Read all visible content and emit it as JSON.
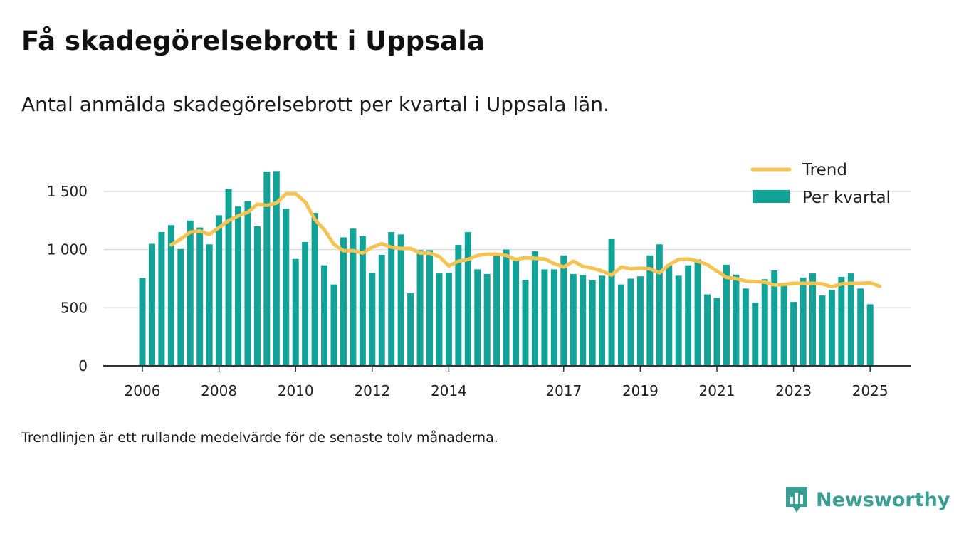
{
  "title": "Få skadegörelsebrott i Uppsala",
  "subtitle": "Antal anmälda skadegörelsebrott per kvartal i Uppsala län.",
  "footnote": "Trendlinjen är ett rullande medelvärde för de senaste tolv månaderna.",
  "brand": {
    "name": "Newsworthy",
    "icon": "newsworthy-logo-icon"
  },
  "colors": {
    "bar": "#12a398",
    "trend": "#f5c352",
    "grid": "#dcdcdc",
    "axis": "#333333",
    "brand": "#3a9e95"
  },
  "chart_data": {
    "type": "bar",
    "x_start": "2006Q1",
    "x_end": "2025Q1",
    "bar_period": "quarter",
    "xticks": [
      "2006",
      "2008",
      "2010",
      "2012",
      "2014",
      "2017",
      "2019",
      "2021",
      "2023",
      "2025"
    ],
    "yticks": [
      0,
      500,
      1000,
      1500
    ],
    "ytick_labels": [
      "0",
      "500",
      "1 000",
      "1 500"
    ],
    "ylim": [
      0,
      1750
    ],
    "grid": true,
    "legend": {
      "position": "top-right",
      "entries": [
        "Trend",
        "Per kvartal"
      ]
    },
    "series": [
      {
        "name": "Per kvartal",
        "type": "bar",
        "values": [
          755,
          1050,
          1150,
          1210,
          1005,
          1250,
          1190,
          1045,
          1295,
          1520,
          1370,
          1415,
          1200,
          1670,
          1675,
          1350,
          920,
          1065,
          1315,
          865,
          700,
          1105,
          1180,
          1115,
          800,
          955,
          1150,
          1130,
          625,
          995,
          995,
          795,
          800,
          1040,
          1150,
          830,
          790,
          965,
          1000,
          905,
          740,
          985,
          830,
          830,
          950,
          790,
          780,
          735,
          775,
          1090,
          700,
          750,
          770,
          950,
          1045,
          865,
          775,
          865,
          915,
          615,
          585,
          870,
          785,
          665,
          545,
          745,
          820,
          695,
          550,
          760,
          795,
          605,
          655,
          765,
          795,
          665,
          530
        ]
      },
      {
        "name": "Trend",
        "type": "line",
        "values": [
          null,
          null,
          null,
          1040,
          1090,
          1150,
          1160,
          1130,
          1190,
          1250,
          1290,
          1320,
          1390,
          1380,
          1400,
          1480,
          1480,
          1410,
          1260,
          1170,
          1045,
          990,
          990,
          970,
          1020,
          1050,
          1020,
          1010,
          1010,
          970,
          970,
          940,
          860,
          900,
          915,
          950,
          960,
          960,
          950,
          915,
          930,
          925,
          920,
          880,
          850,
          900,
          855,
          840,
          815,
          780,
          850,
          835,
          840,
          835,
          800,
          870,
          915,
          920,
          900,
          870,
          815,
          760,
          750,
          730,
          725,
          720,
          695,
          700,
          710,
          710,
          710,
          705,
          680,
          705,
          710,
          710,
          715,
          685
        ]
      }
    ]
  }
}
